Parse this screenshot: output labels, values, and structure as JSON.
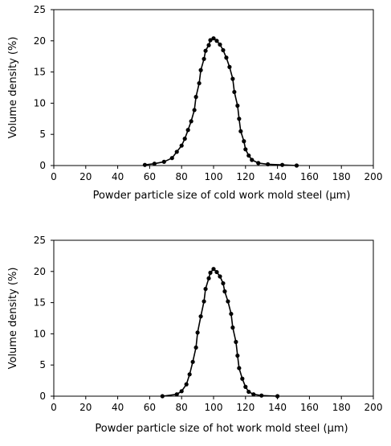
{
  "chart_data": [
    {
      "type": "line",
      "title": "",
      "xlabel": "Powder particle size of cold work mold steel (μm)",
      "ylabel": "Volume density (%)",
      "xlim": [
        0,
        200
      ],
      "ylim": [
        0,
        25
      ],
      "xticks": [
        "0",
        "20",
        "40",
        "60",
        "80",
        "100",
        "120",
        "140",
        "160",
        "180",
        "200"
      ],
      "yticks": [
        "0",
        "5",
        "10",
        "15",
        "20",
        "25"
      ],
      "grid": false,
      "markers": true,
      "series": [
        {
          "x": [
            57,
            63,
            69,
            74,
            77,
            80,
            82,
            84,
            86,
            88,
            89,
            91,
            92,
            94,
            95,
            97,
            98,
            100,
            102,
            104,
            106,
            108,
            110,
            112,
            113,
            115,
            116,
            117,
            119,
            120,
            122,
            124,
            128,
            134,
            143,
            152
          ],
          "y": [
            0.1,
            0.3,
            0.6,
            1.2,
            2.2,
            3.2,
            4.3,
            5.7,
            7.1,
            8.9,
            11.0,
            13.2,
            15.3,
            17.1,
            18.4,
            19.3,
            20.1,
            20.4,
            20.0,
            19.4,
            18.5,
            17.3,
            15.8,
            13.9,
            11.8,
            9.6,
            7.5,
            5.5,
            3.9,
            2.6,
            1.6,
            0.9,
            0.4,
            0.2,
            0.1,
            0.0
          ],
          "color": "#000000"
        }
      ]
    },
    {
      "type": "line",
      "title": "",
      "xlabel": "Powder particle size of hot work mold steel (μm)",
      "ylabel": "Volume density (%)",
      "xlim": [
        0,
        200
      ],
      "ylim": [
        0,
        25
      ],
      "xticks": [
        "0",
        "20",
        "40",
        "60",
        "80",
        "100",
        "120",
        "140",
        "160",
        "180",
        "200"
      ],
      "yticks": [
        "0",
        "5",
        "10",
        "15",
        "20",
        "25"
      ],
      "grid": false,
      "markers": true,
      "series": [
        {
          "x": [
            68,
            77,
            80,
            83,
            85,
            87,
            89,
            90,
            92,
            94,
            95,
            97,
            98,
            100,
            102,
            104,
            106,
            107,
            109,
            111,
            112,
            114,
            115,
            116,
            118,
            120,
            122,
            125,
            130,
            140
          ],
          "y": [
            0.0,
            0.3,
            0.8,
            1.9,
            3.5,
            5.5,
            7.8,
            10.2,
            12.8,
            15.2,
            17.2,
            18.9,
            19.8,
            20.4,
            19.9,
            19.2,
            18.1,
            16.8,
            15.2,
            13.2,
            11.0,
            8.7,
            6.5,
            4.5,
            2.8,
            1.5,
            0.7,
            0.3,
            0.1,
            0.0
          ],
          "color": "#000000"
        }
      ]
    }
  ]
}
